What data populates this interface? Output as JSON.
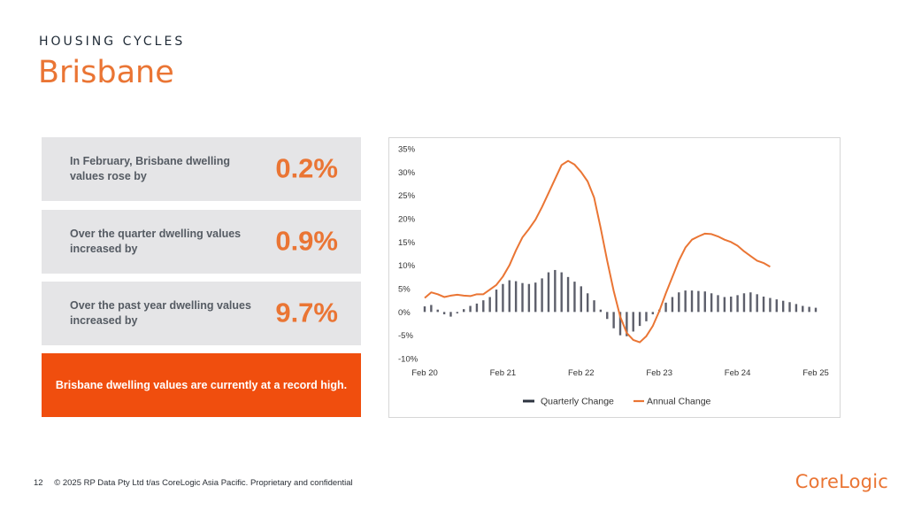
{
  "header": {
    "kicker": "HOUSING CYCLES",
    "title": "Brisbane"
  },
  "stats": [
    {
      "text": "In February, Brisbane dwelling values rose by",
      "value": "0.2%"
    },
    {
      "text": "Over the quarter dwelling values increased by",
      "value": "0.9%"
    },
    {
      "text": "Over the past year dwelling values increased by",
      "value": "9.7%"
    }
  ],
  "highlight": {
    "text": "Brisbane dwelling values are currently at a record high."
  },
  "footer": {
    "page": "12",
    "copyright": "© 2025 RP Data Pty Ltd t/as CoreLogic Asia Pacific. Proprietary and confidential"
  },
  "logo": {
    "text": "CoreLogic"
  },
  "colors": {
    "orange": "#ea7534",
    "highlight_bg": "#f04e0e",
    "bar": "#5d5f6b",
    "box_bg": "#e5e5e7"
  },
  "chart_data": {
    "type": "bar",
    "x": [
      "2020-02",
      "2020-03",
      "2020-04",
      "2020-05",
      "2020-06",
      "2020-07",
      "2020-08",
      "2020-09",
      "2020-10",
      "2020-11",
      "2020-12",
      "2021-01",
      "2021-02",
      "2021-03",
      "2021-04",
      "2021-05",
      "2021-06",
      "2021-07",
      "2021-08",
      "2021-09",
      "2021-10",
      "2021-11",
      "2021-12",
      "2022-01",
      "2022-02",
      "2022-03",
      "2022-04",
      "2022-05",
      "2022-06",
      "2022-07",
      "2022-08",
      "2022-09",
      "2022-10",
      "2022-11",
      "2022-12",
      "2023-01",
      "2023-02",
      "2023-03",
      "2023-04",
      "2023-05",
      "2023-06",
      "2023-07",
      "2023-08",
      "2023-09",
      "2023-10",
      "2023-11",
      "2023-12",
      "2024-01",
      "2024-02",
      "2024-03",
      "2024-04",
      "2024-05",
      "2024-06",
      "2024-07",
      "2024-08",
      "2024-09",
      "2024-10",
      "2024-11",
      "2024-12",
      "2025-01",
      "2025-02"
    ],
    "x_ticks": [
      "Feb 20",
      "Feb 21",
      "Feb 22",
      "Feb 23",
      "Feb 24",
      "Feb 25"
    ],
    "y_ticks": [
      "35%",
      "30%",
      "25%",
      "20%",
      "15%",
      "10%",
      "5%",
      "0%",
      "-5%",
      "-10%"
    ],
    "ylim": [
      -10,
      35
    ],
    "series": [
      {
        "name": "Quarterly Change",
        "type": "bar",
        "values": [
          1.2,
          1.5,
          0.5,
          -0.5,
          -1.0,
          -0.3,
          0.6,
          1.3,
          1.8,
          2.5,
          3.2,
          4.8,
          6.0,
          6.8,
          6.6,
          6.2,
          6.0,
          6.3,
          7.2,
          8.5,
          9.0,
          8.5,
          7.5,
          6.5,
          5.5,
          4.0,
          2.5,
          0.5,
          -1.5,
          -3.5,
          -5.0,
          -5.2,
          -4.2,
          -3.0,
          -2.0,
          -0.5,
          0.5,
          2.0,
          3.2,
          4.2,
          4.6,
          4.6,
          4.5,
          4.4,
          4.0,
          3.6,
          3.2,
          3.3,
          3.6,
          4.0,
          4.2,
          3.8,
          3.3,
          3.0,
          2.7,
          2.4,
          2.1,
          1.7,
          1.3,
          1.1,
          0.9
        ]
      },
      {
        "name": "Annual Change",
        "type": "line",
        "values": [
          3.0,
          4.2,
          3.8,
          3.2,
          3.5,
          3.7,
          3.5,
          3.4,
          3.8,
          3.8,
          4.8,
          5.8,
          7.6,
          10.0,
          13.2,
          16.0,
          17.8,
          19.8,
          22.5,
          25.5,
          28.5,
          31.5,
          32.4,
          31.6,
          30.0,
          28.0,
          24.5,
          18.0,
          11.0,
          4.5,
          -1.0,
          -4.5,
          -6.0,
          -6.5,
          -5.2,
          -3.0,
          0.2,
          4.0,
          7.5,
          11.0,
          13.8,
          15.5,
          16.2,
          16.8,
          16.7,
          16.2,
          15.5,
          15.0,
          14.2,
          13.0,
          12.0,
          11.0,
          10.5,
          9.7,
          null,
          null,
          null,
          null,
          null,
          null,
          null
        ]
      }
    ],
    "legend": {
      "position": "bottom",
      "entries": [
        "Quarterly Change",
        "Annual Change"
      ]
    },
    "grid": false
  }
}
